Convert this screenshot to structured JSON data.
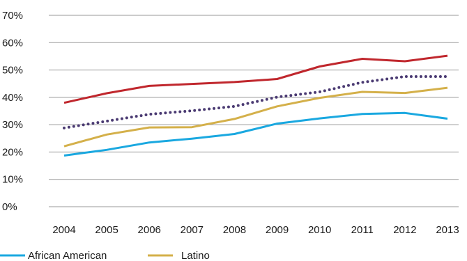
{
  "chart_data": {
    "type": "line",
    "title": "",
    "xlabel": "",
    "ylabel": "",
    "x": [
      "2004",
      "2005",
      "2006",
      "2007",
      "2008",
      "2009",
      "2010",
      "2011",
      "2012",
      "2013"
    ],
    "ylim": [
      0,
      70
    ],
    "yticks": [
      "0%",
      "10%",
      "20%",
      "30%",
      "40%",
      "50%",
      "60%",
      "70%"
    ],
    "grid": "horizontal",
    "legend": "bottom-left",
    "series": [
      {
        "name": "",
        "color": "#c0272d",
        "style": "solid",
        "values": [
          38,
          41.5,
          44.2,
          44.9,
          45.6,
          46.7,
          51.3,
          54.1,
          53.2,
          55.2
        ]
      },
      {
        "name": "",
        "color": "#4a3a72",
        "style": "dotted",
        "values": [
          28.8,
          31.3,
          33.8,
          35.1,
          36.7,
          40.1,
          42.0,
          45.5,
          47.6,
          47.6
        ]
      },
      {
        "name": "Latino",
        "color": "#d4b04a",
        "style": "solid",
        "values": [
          22.1,
          26.4,
          29.0,
          29.1,
          32.1,
          36.7,
          39.8,
          42.0,
          41.6,
          43.5
        ]
      },
      {
        "name": "African American",
        "color": "#1aa8e0",
        "style": "solid",
        "values": [
          18.7,
          20.8,
          23.5,
          24.9,
          26.6,
          30.4,
          32.3,
          33.9,
          34.3,
          32.2
        ]
      }
    ]
  }
}
